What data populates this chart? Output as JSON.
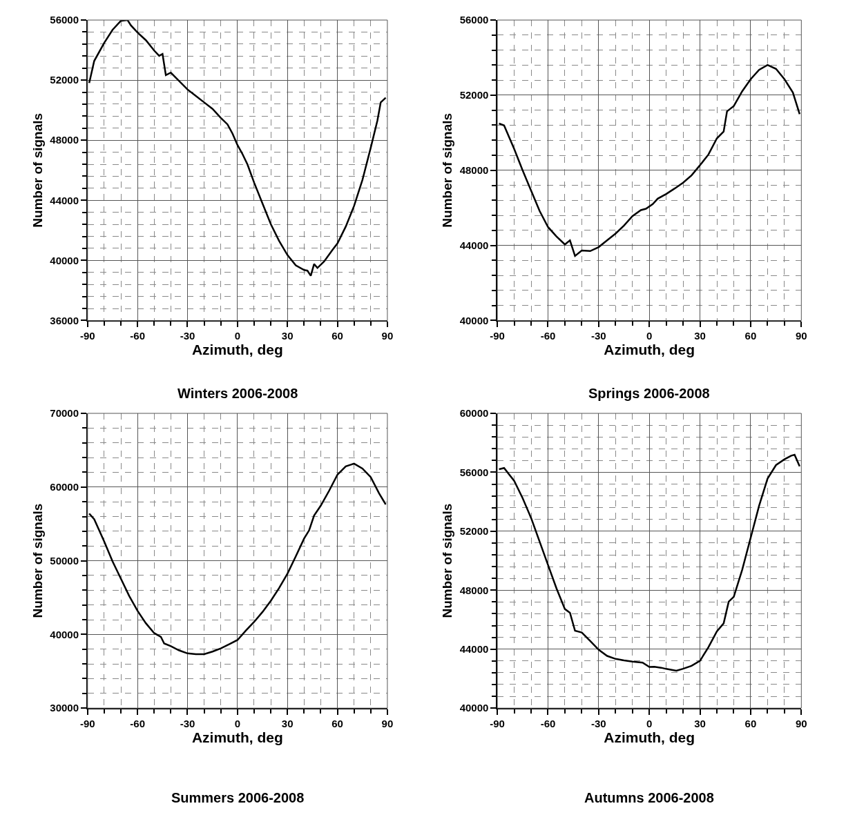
{
  "chart_data": [
    {
      "type": "line",
      "title": "Winters 2006-2008",
      "xlabel": "Azimuth, deg",
      "ylabel": "Number of signals",
      "grid": true,
      "line_style": "solid",
      "x": [
        -89,
        -86,
        -80,
        -75,
        -70,
        -66,
        -64,
        -60,
        -55,
        -50,
        -47,
        -45,
        -43,
        -40,
        -37,
        -30,
        -25,
        -20,
        -15,
        -10,
        -6,
        -3,
        0,
        3,
        6,
        10,
        15,
        20,
        25,
        30,
        35,
        40,
        42,
        44,
        46,
        48,
        52,
        57,
        60,
        65,
        70,
        75,
        80,
        84,
        86,
        89
      ],
      "series": [
        {
          "color": "#000000",
          "values": [
            51810,
            53280,
            54480,
            55350,
            55950,
            56000,
            55650,
            55170,
            54660,
            53970,
            53620,
            53740,
            52330,
            52500,
            52160,
            51380,
            50950,
            50520,
            50090,
            49490,
            49060,
            48450,
            47680,
            47080,
            46390,
            45180,
            43800,
            42420,
            41300,
            40360,
            39670,
            39360,
            39320,
            38980,
            39760,
            39500,
            39930,
            40700,
            41130,
            42250,
            43630,
            45350,
            47500,
            49310,
            50520,
            50830
          ]
        }
      ],
      "xlim": [
        -90,
        90
      ],
      "xticks": [
        -90,
        -60,
        -30,
        0,
        30,
        60,
        90
      ],
      "ylim": [
        36000,
        56000
      ],
      "yticks": [
        36000,
        40000,
        44000,
        48000,
        52000,
        56000
      ]
    },
    {
      "type": "line",
      "title": "Springs 2006-2008",
      "xlabel": "Azimuth, deg",
      "ylabel": "Number of signals",
      "grid": true,
      "line_style": "solid",
      "x": [
        -89,
        -86,
        -80,
        -75,
        -70,
        -65,
        -60,
        -55,
        -50,
        -47,
        -44,
        -40,
        -35,
        -30,
        -25,
        -20,
        -15,
        -10,
        -5,
        -2,
        2,
        5,
        10,
        15,
        20,
        25,
        30,
        35,
        40,
        44,
        46,
        50,
        55,
        60,
        65,
        70,
        75,
        80,
        85,
        89
      ],
      "series": [
        {
          "color": "#000000",
          "values": [
            50490,
            50390,
            49130,
            47990,
            46920,
            45840,
            44980,
            44480,
            44050,
            44270,
            43440,
            43730,
            43700,
            43910,
            44270,
            44630,
            45060,
            45560,
            45880,
            45950,
            46200,
            46490,
            46740,
            47030,
            47340,
            47730,
            48270,
            48840,
            49700,
            50060,
            51140,
            51420,
            52210,
            52850,
            53350,
            53610,
            53400,
            52850,
            52140,
            50990
          ]
        }
      ],
      "xlim": [
        -90,
        90
      ],
      "xticks": [
        -90,
        -60,
        -30,
        0,
        30,
        60,
        90
      ],
      "ylim": [
        40000,
        56000
      ],
      "yticks": [
        40000,
        44000,
        48000,
        52000,
        56000
      ]
    },
    {
      "type": "line",
      "title": "Summers 2006-2008",
      "xlabel": "Azimuth, deg",
      "ylabel": "Number of signals",
      "grid": true,
      "line_style": "solid",
      "x": [
        -89,
        -86,
        -80,
        -75,
        -70,
        -65,
        -60,
        -55,
        -50,
        -46,
        -44,
        -40,
        -35,
        -30,
        -25,
        -20,
        -15,
        -10,
        -5,
        0,
        5,
        10,
        15,
        20,
        25,
        30,
        35,
        40,
        43,
        46,
        50,
        55,
        60,
        65,
        70,
        75,
        80,
        85,
        89
      ],
      "series": [
        {
          "color": "#000000",
          "values": [
            56400,
            55630,
            52610,
            49920,
            47570,
            45220,
            43200,
            41520,
            40180,
            39680,
            38770,
            38400,
            37830,
            37430,
            37330,
            37330,
            37670,
            38100,
            38670,
            39240,
            40520,
            41700,
            43040,
            44550,
            46290,
            48240,
            50590,
            53010,
            54120,
            56130,
            57470,
            59490,
            61670,
            62810,
            63180,
            62510,
            61340,
            59150,
            57640
          ]
        }
      ],
      "xlim": [
        -90,
        90
      ],
      "xticks": [
        -90,
        -60,
        -30,
        0,
        30,
        60,
        90
      ],
      "ylim": [
        30000,
        70000
      ],
      "yticks": [
        30000,
        40000,
        50000,
        60000,
        70000
      ]
    },
    {
      "type": "line",
      "title": "Autumns 2006-2008",
      "xlabel": "Azimuth, deg",
      "ylabel": "Number of signals",
      "grid": true,
      "line_style": "solid",
      "x": [
        -89,
        -86,
        -80,
        -75,
        -70,
        -65,
        -60,
        -55,
        -50,
        -47,
        -44,
        -40,
        -35,
        -30,
        -25,
        -20,
        -15,
        -10,
        -4,
        0,
        3,
        7,
        10,
        16,
        20,
        25,
        30,
        35,
        40,
        44,
        47,
        50,
        55,
        60,
        65,
        70,
        75,
        80,
        84,
        86,
        89
      ],
      "series": [
        {
          "color": "#000000",
          "values": [
            56210,
            56290,
            55410,
            54240,
            52900,
            51310,
            49720,
            48130,
            46720,
            46470,
            45250,
            45130,
            44550,
            43960,
            43540,
            43340,
            43240,
            43160,
            43090,
            42790,
            42810,
            42740,
            42660,
            42540,
            42670,
            42870,
            43210,
            44130,
            45210,
            45750,
            47220,
            47550,
            49390,
            51560,
            53730,
            55570,
            56490,
            56880,
            57130,
            57190,
            56410
          ]
        }
      ],
      "xlim": [
        -90,
        90
      ],
      "xticks": [
        -90,
        -60,
        -30,
        0,
        30,
        60,
        90
      ],
      "ylim": [
        40000,
        60000
      ],
      "yticks": [
        40000,
        44000,
        48000,
        52000,
        56000,
        60000
      ]
    }
  ]
}
